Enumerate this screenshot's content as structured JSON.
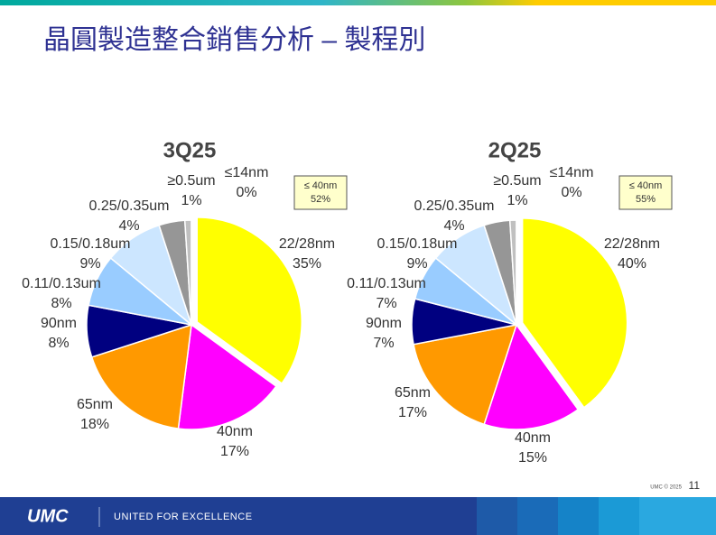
{
  "title": "晶圓製造整合銷售分析 – 製程別",
  "chart_data": [
    {
      "type": "pie",
      "title": "3Q25",
      "categories": [
        "22/28nm",
        "40nm",
        "65nm",
        "90nm",
        "0.11/0.13um",
        "0.15/0.18um",
        "0.25/0.35um",
        "≥0.5um",
        "≤14nm"
      ],
      "values": [
        35,
        17,
        18,
        8,
        8,
        9,
        4,
        1,
        0
      ],
      "value_labels": [
        "35%",
        "17%",
        "18%",
        "8%",
        "8%",
        "9%",
        "4%",
        "1%",
        "0%"
      ],
      "colors": [
        "#ffff00",
        "#ff00ff",
        "#ff9900",
        "#000080",
        "#99ccff",
        "#cce6ff",
        "#969696",
        "#c0c0c0",
        "#e8e8e8"
      ],
      "annotation": [
        "≤ 40nm",
        "52%"
      ]
    },
    {
      "type": "pie",
      "title": "2Q25",
      "categories": [
        "22/28nm",
        "40nm",
        "65nm",
        "90nm",
        "0.11/0.13um",
        "0.15/0.18um",
        "0.25/0.35um",
        "≥0.5um",
        "≤14nm"
      ],
      "values": [
        40,
        15,
        17,
        7,
        7,
        9,
        4,
        1,
        0
      ],
      "value_labels": [
        "40%",
        "15%",
        "17%",
        "7%",
        "7%",
        "9%",
        "4%",
        "1%",
        "0%"
      ],
      "colors": [
        "#ffff00",
        "#ff00ff",
        "#ff9900",
        "#000080",
        "#99ccff",
        "#cce6ff",
        "#969696",
        "#c0c0c0",
        "#e8e8e8"
      ],
      "annotation": [
        "≤ 40nm",
        "55%"
      ]
    }
  ],
  "footer": {
    "logo": "UMC",
    "tagline": "UNITED FOR EXCELLENCE",
    "copyright": "UMC © 2025",
    "page": "11"
  }
}
